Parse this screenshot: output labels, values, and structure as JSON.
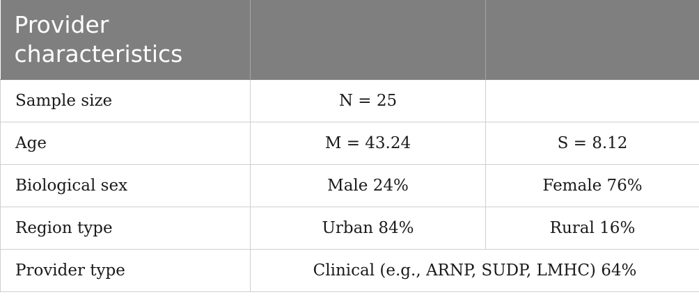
{
  "table": {
    "header": {
      "col1": "Provider characteristics",
      "col2": "",
      "col3": ""
    },
    "rows": [
      {
        "label": "Sample size",
        "value1": "N = 25",
        "value2": ""
      },
      {
        "label": "Age",
        "value1": "M = 43.24",
        "value2": "S = 8.12"
      },
      {
        "label": "Biological sex",
        "value1": "Male 24%",
        "value2": "Female 76%"
      },
      {
        "label": "Region type",
        "value1": "Urban 84%",
        "value2": "Rural 16%"
      },
      {
        "label": "Provider type",
        "value_span": "Clinical (e.g., ARNP, SUDP, LMHC) 64%"
      }
    ]
  },
  "colors": {
    "header_bg": "#7f7f7f",
    "header_text": "#ffffff",
    "border": "#cfcfcf"
  }
}
